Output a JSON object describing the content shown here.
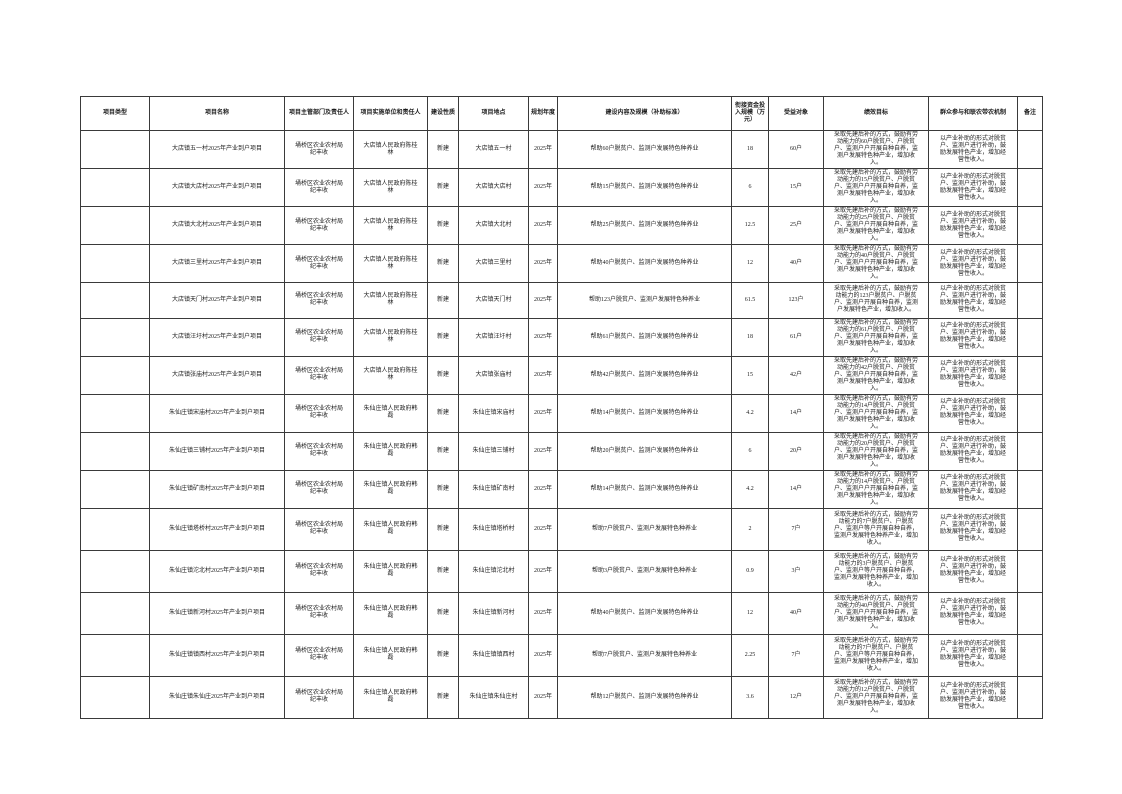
{
  "table": {
    "column_keys": [
      "type",
      "name",
      "dept",
      "unit",
      "nature",
      "location",
      "year",
      "content",
      "fund",
      "beneficiary",
      "performance",
      "participation",
      "note"
    ],
    "headers": [
      "项目类型",
      "项目名称",
      "项目主管部门及责任人",
      "项目实施单位和责任人",
      "建设性质",
      "项目地点",
      "规划年度",
      "建设内容及规模（补助标准）",
      "衔接资金投入规模（万元）",
      "受益对象",
      "绩效目标",
      "群众参与和联农带农机制",
      "备注"
    ],
    "rows": [
      {
        "type": "",
        "name": "大店镇五一村2025年产业到户项目",
        "dept": "埇桥区农业农村局 纪丰收",
        "unit": "大店镇人民政府陈桂林",
        "nature": "新建",
        "location": "大店镇五一村",
        "year": "2025年",
        "content": "帮助60户脱贫户、监测户发展特色种养业",
        "fund": "18",
        "beneficiary": "60户",
        "performance": "采取先建后补的方式，鼓励有劳动能力的60户脱贫户、户脱贫户、监测户户开展自种自养，监测户发展特色种产业，增加收入。",
        "participation": "以产业补助的形式对脱贫户、监测户进行补助，鼓励发展特色产业，增加经营性收入。",
        "note": ""
      },
      {
        "type": "",
        "name": "大店镇大店村2025年产业到户项目",
        "dept": "埇桥区农业农村局 纪丰收",
        "unit": "大店镇人民政府陈桂林",
        "nature": "新建",
        "location": "大店镇大店村",
        "year": "2025年",
        "content": "帮助15户脱贫户、监测户发展特色种养业",
        "fund": "6",
        "beneficiary": "15户",
        "performance": "采取先建后补的方式，鼓励有劳动能力的15户脱贫户、户脱贫户、监测户户开展自种自养，监测户发展特色种产业，增加收入。",
        "participation": "以产业补助的形式对脱贫户、监测户进行补助，鼓励发展特色产业，增加经营性收入。",
        "note": ""
      },
      {
        "type": "",
        "name": "大店镇大北村2025年产业到户项目",
        "dept": "埇桥区农业农村局 纪丰收",
        "unit": "大店镇人民政府陈桂林",
        "nature": "新建",
        "location": "大店镇大北村",
        "year": "2025年",
        "content": "帮助25户脱贫户、监测户发展特色种养业",
        "fund": "12.5",
        "beneficiary": "25户",
        "performance": "采取先建后补的方式，鼓励有劳动能力的25户脱贫户、户脱贫户、监测户户开展自种自养，监测户发展特色种产业，增加收入。",
        "participation": "以产业补助的形式对脱贫户、监测户进行补助，鼓励发展特色产业，增加经营性收入。",
        "note": ""
      },
      {
        "type": "",
        "name": "大店镇三里村2025年产业到户项目",
        "dept": "埇桥区农业农村局 纪丰收",
        "unit": "大店镇人民政府陈桂林",
        "nature": "新建",
        "location": "大店镇三里村",
        "year": "2025年",
        "content": "帮助40户脱贫户、监测户发展特色种养业",
        "fund": "12",
        "beneficiary": "40户",
        "performance": "采取先建后补的方式，鼓励有劳动能力的40户脱贫户、户脱贫户、监测户户开展自种自养，监测户发展特色种产业，增加收入。",
        "participation": "以产业补助的形式对脱贫户、监测户进行补助，鼓励发展特色产业，增加经营性收入。",
        "note": ""
      },
      {
        "type": "",
        "name": "大店镇天门村2025年产业到户项目",
        "dept": "埇桥区农业农村局 纪丰收",
        "unit": "大店镇人民政府陈桂林",
        "nature": "新建",
        "location": "大店镇天门村",
        "year": "2025年",
        "content": "帮助123户脱贫户、监测户发展特色种养业",
        "fund": "61.5",
        "beneficiary": "123户",
        "performance": "采取先建后补的方式，鼓励有劳动能力的123户脱贫户、户脱贫户、监测户开展自种自养，监测户发展特色产业，增加收入。",
        "participation": "以产业补助的形式对脱贫户、监测户进行补助，鼓励发展特色产业，增加经营性收入。",
        "note": ""
      },
      {
        "type": "",
        "name": "大店镇汪圩村2025年产业到户项目",
        "dept": "埇桥区农业农村局 纪丰收",
        "unit": "大店镇人民政府陈桂林",
        "nature": "新建",
        "location": "大店镇汪圩村",
        "year": "2025年",
        "content": "帮助61户脱贫户、监测户发展特色种养业",
        "fund": "18",
        "beneficiary": "61户",
        "performance": "采取先建后补的方式，鼓励有劳动能力的61户脱贫户、户脱贫户、监测户户开展自种自养，监测户发展特色种产业，增加收入。",
        "participation": "以产业补助的形式对脱贫户、监测户进行补助，鼓励发展特色产业，增加经营性收入。",
        "note": ""
      },
      {
        "type": "",
        "name": "大店镇张庙村2025年产业到户项目",
        "dept": "埇桥区农业农村局 纪丰收",
        "unit": "大店镇人民政府陈桂林",
        "nature": "新建",
        "location": "大店镇张庙村",
        "year": "2025年",
        "content": "帮助42户脱贫户、监测户发展特色种养业",
        "fund": "15",
        "beneficiary": "42户",
        "performance": "采取先建后补的方式，鼓励有劳动能力的42户脱贫户、户脱贫户、监测户户开展自种自养，监测户发展特色种产业，增加收入。",
        "participation": "以产业补助的形式对脱贫户、监测户进行补助，鼓励发展特色产业，增加经营性收入。",
        "note": ""
      },
      {
        "type": "",
        "name": "朱仙庄镇宋庙村2025年产业到户项目",
        "dept": "埇桥区农业农村局 纪丰收",
        "unit": "朱仙庄镇人民政府韩磊",
        "nature": "新建",
        "location": "朱仙庄镇宋庙村",
        "year": "2025年",
        "content": "帮助14户脱贫户、监测户发展特色种养业",
        "fund": "4.2",
        "beneficiary": "14户",
        "performance": "采取先建后补的方式，鼓励有劳动能力的14户脱贫户、户脱贫户、监测户户开展自种自养，监测户发展特色种产业，增加收入。",
        "participation": "以产业补助的形式对脱贫户、监测户进行补助，鼓励发展特色产业，增加经营性收入。",
        "note": ""
      },
      {
        "type": "",
        "name": "朱仙庄镇三铺村2025年产业到户项目",
        "dept": "埇桥区农业农村局 纪丰收",
        "unit": "朱仙庄镇人民政府韩磊",
        "nature": "新建",
        "location": "朱仙庄镇三铺村",
        "year": "2025年",
        "content": "帮助20户脱贫户、监测户发展特色种养业",
        "fund": "6",
        "beneficiary": "20户",
        "performance": "采取先建后补的方式，鼓励有劳动能力的20户脱贫户、户脱贫户、监测户户开展自种自养，监测户发展特色种产业，增加收入。",
        "participation": "以产业补助的形式对脱贫户、监测户进行补助，鼓励发展特色产业，增加经营性收入。",
        "note": ""
      },
      {
        "type": "",
        "name": "朱仙庄镇矿南村2025年产业到户项目",
        "dept": "埇桥区农业农村局 纪丰收",
        "unit": "朱仙庄镇人民政府韩磊",
        "nature": "新建",
        "location": "朱仙庄镇矿南村",
        "year": "2025年",
        "content": "帮助14户脱贫户、监测户发展特色种养业",
        "fund": "4.2",
        "beneficiary": "14户",
        "performance": "采取先建后补的方式，鼓励有劳动能力的14户脱贫户、户脱贫户、监测户户开展自种自养，监测户发展特色种产业，增加收入。",
        "participation": "以产业补助的形式对脱贫户、监测户进行补助，鼓励发展特色产业，增加经营性收入。",
        "note": ""
      },
      {
        "type": "",
        "name": "朱仙庄镇塔桥村2025年产业到户项目",
        "dept": "埇桥区农业农村局 纪丰收",
        "unit": "朱仙庄镇人民政府韩磊",
        "nature": "新建",
        "location": "朱仙庄镇塔桥村",
        "year": "2025年",
        "content": "帮助7户脱贫户、监测户发展特色种养业",
        "fund": "2",
        "beneficiary": "7户",
        "performance": "采取先建后补的方式，鼓励有劳动能力的7户脱贫户、户脱贫户、监测户等户开展自种自养，监测户发展特色种养产业，增加收入。",
        "participation": "以产业补助的形式对脱贫户、监测户进行补助，鼓励发展特色产业，增加经营性收入。",
        "note": ""
      },
      {
        "type": "",
        "name": "朱仙庄镇沱北村2025年产业到户项目",
        "dept": "埇桥区农业农村局 纪丰收",
        "unit": "朱仙庄镇人民政府韩磊",
        "nature": "新建",
        "location": "朱仙庄镇沱北村",
        "year": "2025年",
        "content": "帮助3户脱贫户、监测户发展特色种养业",
        "fund": "0.9",
        "beneficiary": "3户",
        "performance": "采取先建后补的方式，鼓励有劳动能力的3户脱贫户、户脱贫户、监测户等户开展自种自养，监测户发展特色种养产业，增加收入。",
        "participation": "以产业补助的形式对脱贫户、监测户进行补助，鼓励发展特色产业，增加经营性收入。",
        "note": ""
      },
      {
        "type": "",
        "name": "朱仙庄镇新河村2025年产业到户项目",
        "dept": "埇桥区农业农村局 纪丰收",
        "unit": "朱仙庄镇人民政府韩磊",
        "nature": "新建",
        "location": "朱仙庄镇新河村",
        "year": "2025年",
        "content": "帮助40户脱贫户、监测户发展特色种养业",
        "fund": "12",
        "beneficiary": "40户",
        "performance": "采取先建后补的方式，鼓励有劳动能力的40户脱贫户、户脱贫户、监测户户开展自种自养，监测户发展特色种产业，增加收入。",
        "participation": "以产业补助的形式对脱贫户、监测户进行补助，鼓励发展特色产业，增加经营性收入。",
        "note": ""
      },
      {
        "type": "",
        "name": "朱仙庄镇镇西村2025年产业到户项目",
        "dept": "埇桥区农业农村局 纪丰收",
        "unit": "朱仙庄镇人民政府韩磊",
        "nature": "新建",
        "location": "朱仙庄镇镇西村",
        "year": "2025年",
        "content": "帮助7户脱贫户、监测户发展特色种养业",
        "fund": "2.25",
        "beneficiary": "7户",
        "performance": "采取先建后补的方式，鼓励有劳动能力的7户脱贫户、户脱贫户、监测户等户开展自种自养，监测户发展特色种养产业，增加收入。",
        "participation": "以产业补助的形式对脱贫户、监测户进行补助，鼓励发展特色产业，增加经营性收入。",
        "note": ""
      },
      {
        "type": "",
        "name": "朱仙庄镇朱仙庄2025年产业到户项目",
        "dept": "埇桥区农业农村局 纪丰收",
        "unit": "朱仙庄镇人民政府韩磊",
        "nature": "新建",
        "location": "朱仙庄镇朱仙庄村",
        "year": "2025年",
        "content": "帮助12户脱贫户、监测户发展特色种养业",
        "fund": "3.6",
        "beneficiary": "12户",
        "performance": "采取先建后补的方式，鼓励有劳动能力的12户脱贫户、户脱贫户、监测户户开展自种自养，监测户发展特色种产业，增加收入。",
        "participation": "以产业补助的形式对脱贫户、监测户进行补助，鼓励发展特色产业，增加经营性收入。",
        "note": ""
      }
    ]
  }
}
